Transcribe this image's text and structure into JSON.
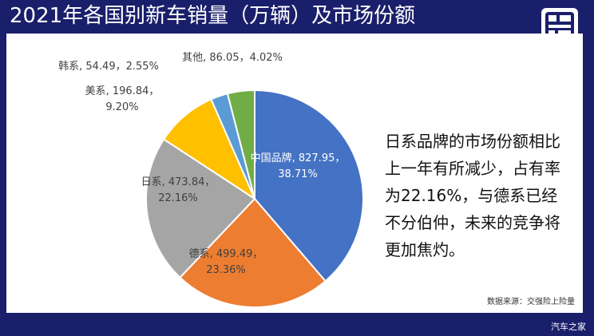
{
  "header": {
    "title": "2021年各国别新车销量（万辆）及市场份额"
  },
  "note": {
    "lines": [
      "日系品牌的市场份额相比",
      "上一年有所减少，占有率",
      "为22.16%，与德系已经",
      "不分伯仲，未来的竞争将",
      "更加焦灼。"
    ]
  },
  "source": "数据来源：交强险上险量",
  "footer": {
    "watermark": "汽车之家"
  },
  "logo": {
    "icon": "autohome-badge-icon"
  },
  "chart_data": {
    "type": "pie",
    "title": "",
    "series": [
      {
        "name": "中国品牌",
        "value": 827.95,
        "percent": "38.71%",
        "color": "#4472c4"
      },
      {
        "name": "德系",
        "value": 499.49,
        "percent": "23.36%",
        "color": "#ed7d31"
      },
      {
        "name": "日系",
        "value": 473.84,
        "percent": "22.16%",
        "color": "#a5a5a5"
      },
      {
        "name": "美系",
        "value": 196.84,
        "percent": "9.20%",
        "color": "#ffc000"
      },
      {
        "name": "韩系",
        "value": 54.49,
        "percent": "2.55%",
        "color": "#5b9bd5"
      },
      {
        "name": "其他",
        "value": 86.05,
        "percent": "4.02%",
        "color": "#70ad47"
      }
    ],
    "labels": [
      {
        "line1": "中国品牌, 827.95，",
        "line2": "38.71%"
      },
      {
        "line1": "德系, 499.49，",
        "line2": "23.36%"
      },
      {
        "line1": "日系, 473.84，",
        "line2": "22.16%"
      },
      {
        "line1": "美系, 196.84，",
        "line2": "9.20%"
      },
      {
        "line1": "韩系, 54.49，2.55%",
        "line2": ""
      },
      {
        "line1": "其他, 86.05，4.02%",
        "line2": ""
      }
    ]
  }
}
